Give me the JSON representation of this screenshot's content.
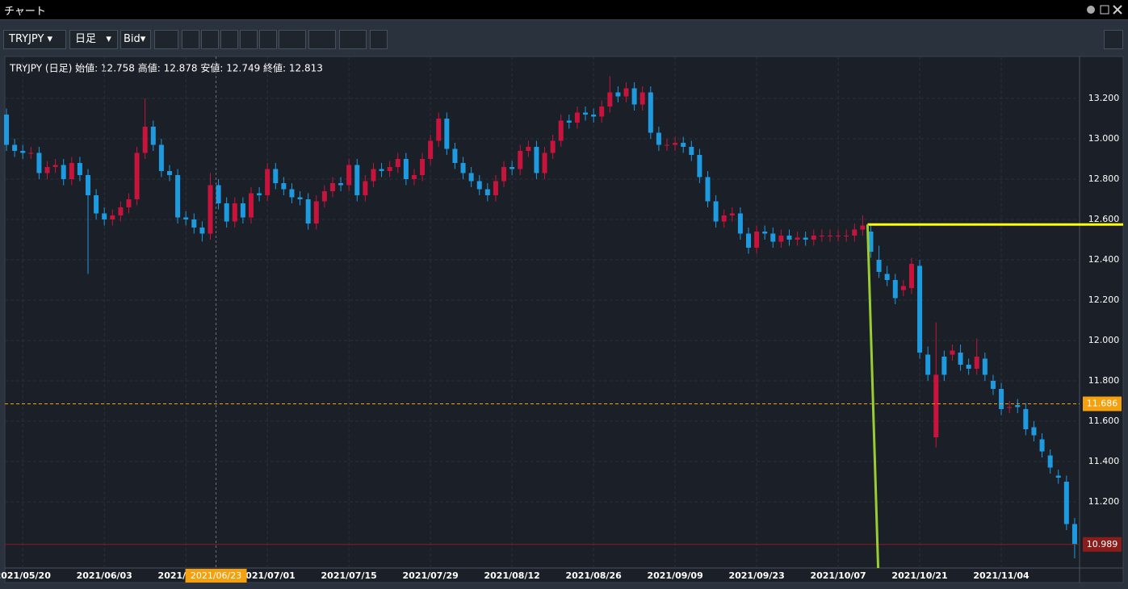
{
  "ui": {
    "window_title": "チャート",
    "symbol": "TRYJPY",
    "timeframe": "日足",
    "side": "Bid"
  },
  "chart_data": {
    "type": "candlestick",
    "info": "TRYJPY (日足) 始値: 12.758 高値: 12.878 安値: 12.749 終値: 12.813",
    "up_color": "#c8143c",
    "down_color": "#1e9be0",
    "grid": true,
    "xlim": [
      -0.2,
      131.6
    ],
    "xticks": [
      {
        "value": 2,
        "label": "2021/05/20"
      },
      {
        "value": 12,
        "label": "2021/06/03"
      },
      {
        "value": 22,
        "label": "2021/06/17"
      },
      {
        "value": 32,
        "label": "2021/07/01"
      },
      {
        "value": 42,
        "label": "2021/07/15"
      },
      {
        "value": 52,
        "label": "2021/07/29"
      },
      {
        "value": 62,
        "label": "2021/08/12"
      },
      {
        "value": 72,
        "label": "2021/08/26"
      },
      {
        "value": 82,
        "label": "2021/09/09"
      },
      {
        "value": 92,
        "label": "2021/09/23"
      },
      {
        "value": 102,
        "label": "2021/10/07"
      },
      {
        "value": 112,
        "label": "2021/10/21"
      },
      {
        "value": 122,
        "label": "2021/11/04"
      }
    ],
    "ylim": [
      10.872,
      13.4
    ],
    "yticks": [
      {
        "value": 11.2,
        "label": "11.200"
      },
      {
        "value": 11.4,
        "label": "11.400"
      },
      {
        "value": 11.6,
        "label": "11.600"
      },
      {
        "value": 11.8,
        "label": "11.800"
      },
      {
        "value": 12,
        "label": "12.000"
      },
      {
        "value": 12.2,
        "label": "12.200"
      },
      {
        "value": 12.4,
        "label": "12.400"
      },
      {
        "value": 12.6,
        "label": "12.600"
      },
      {
        "value": 12.8,
        "label": "12.800"
      },
      {
        "value": 13,
        "label": "13.000"
      },
      {
        "value": 13.2,
        "label": "13.200"
      }
    ],
    "open": [
      13.12,
      12.97,
      12.94,
      12.93,
      12.93,
      12.83,
      12.86,
      12.87,
      12.8,
      12.88,
      12.82,
      12.72,
      12.63,
      12.6,
      12.62,
      12.66,
      12.7,
      12.93,
      13.06,
      12.97,
      12.84,
      12.82,
      12.61,
      12.6,
      12.56,
      12.53,
      12.77,
      12.68,
      12.59,
      12.68,
      12.61,
      12.73,
      12.72,
      12.85,
      12.78,
      12.75,
      12.71,
      12.7,
      12.58,
      12.69,
      12.74,
      12.78,
      12.77,
      12.87,
      12.72,
      12.79,
      12.85,
      12.84,
      12.86,
      12.9,
      12.8,
      12.82,
      12.9,
      12.99,
      13.1,
      12.95,
      12.88,
      12.83,
      12.79,
      12.75,
      12.72,
      12.79,
      12.86,
      12.85,
      12.94,
      12.96,
      12.83,
      12.93,
      12.99,
      13.09,
      13.08,
      13.13,
      13.12,
      13.11,
      13.16,
      13.23,
      13.21,
      13.25,
      13.17,
      13.23,
      13.03,
      12.97,
      12.97,
      12.98,
      12.96,
      12.92,
      12.81,
      12.69,
      12.59,
      12.62,
      12.63,
      12.53,
      12.46,
      12.54,
      12.53,
      12.49,
      12.52,
      12.5,
      12.51,
      12.5,
      12.52,
      12.52,
      12.52,
      12.52,
      12.52,
      12.55,
      12.54,
      12.4,
      12.33,
      12.3,
      12.25,
      12.26,
      12.37,
      11.93,
      11.52,
      11.92,
      11.93,
      11.94,
      11.88,
      11.86,
      11.91,
      11.8,
      11.76,
      11.67,
      11.68,
      11.66,
      11.57,
      11.51,
      11.43,
      11.33,
      11.3,
      11.09
    ],
    "high": [
      13.15,
      13.0,
      12.97,
      12.96,
      12.96,
      12.89,
      12.9,
      12.9,
      12.91,
      12.91,
      12.85,
      12.75,
      12.66,
      12.65,
      12.69,
      12.73,
      12.96,
      13.2,
      13.09,
      13.0,
      12.87,
      12.85,
      12.64,
      12.63,
      12.59,
      12.83,
      12.8,
      12.71,
      12.71,
      12.71,
      12.76,
      12.76,
      12.88,
      12.88,
      12.81,
      12.78,
      12.74,
      12.73,
      12.72,
      12.77,
      12.81,
      12.81,
      12.9,
      12.9,
      12.82,
      12.88,
      12.88,
      12.89,
      12.93,
      12.93,
      12.85,
      12.93,
      13.02,
      13.13,
      13.13,
      12.98,
      12.91,
      12.86,
      12.82,
      12.78,
      12.82,
      12.89,
      12.89,
      12.97,
      12.99,
      12.99,
      12.96,
      13.02,
      13.12,
      13.12,
      13.16,
      13.16,
      13.15,
      13.19,
      13.31,
      13.26,
      13.28,
      13.28,
      13.26,
      13.26,
      13.06,
      13.0,
      13.01,
      13.01,
      12.99,
      12.95,
      12.84,
      12.72,
      12.65,
      12.66,
      12.66,
      12.56,
      12.57,
      12.57,
      12.56,
      12.55,
      12.55,
      12.54,
      12.54,
      12.55,
      12.55,
      12.55,
      12.55,
      12.55,
      12.58,
      12.62,
      12.57,
      12.47,
      12.37,
      12.33,
      12.3,
      12.41,
      12.4,
      11.97,
      12.09,
      11.95,
      11.98,
      11.98,
      11.91,
      12.01,
      11.94,
      11.83,
      11.79,
      11.7,
      11.71,
      11.69,
      11.6,
      11.54,
      11.46,
      11.36,
      11.33,
      11.12
    ],
    "low": [
      12.94,
      12.91,
      12.9,
      12.9,
      12.8,
      12.8,
      12.83,
      12.77,
      12.77,
      12.79,
      12.33,
      12.6,
      12.57,
      12.57,
      12.59,
      12.63,
      12.67,
      12.9,
      12.94,
      12.81,
      12.79,
      12.58,
      12.57,
      12.53,
      12.49,
      12.5,
      12.65,
      12.56,
      12.56,
      12.58,
      12.58,
      12.69,
      12.69,
      12.75,
      12.72,
      12.68,
      12.67,
      12.55,
      12.55,
      12.66,
      12.71,
      12.74,
      12.74,
      12.69,
      12.69,
      12.76,
      12.81,
      12.81,
      12.83,
      12.77,
      12.77,
      12.79,
      12.87,
      12.96,
      12.92,
      12.85,
      12.8,
      12.76,
      12.72,
      12.69,
      12.69,
      12.76,
      12.82,
      12.82,
      12.91,
      12.8,
      12.8,
      12.9,
      12.96,
      13.05,
      13.05,
      13.09,
      13.08,
      13.08,
      13.13,
      13.18,
      13.18,
      13.14,
      13.14,
      13.0,
      12.94,
      12.94,
      12.94,
      12.93,
      12.89,
      12.78,
      12.66,
      12.56,
      12.56,
      12.59,
      12.5,
      12.43,
      12.43,
      12.5,
      12.46,
      12.46,
      12.47,
      12.47,
      12.47,
      12.47,
      12.49,
      12.49,
      12.49,
      12.49,
      12.49,
      12.52,
      12.41,
      12.31,
      12.27,
      12.18,
      12.22,
      12.23,
      11.91,
      11.8,
      11.47,
      11.8,
      11.9,
      11.85,
      11.83,
      11.83,
      11.8,
      11.73,
      11.63,
      11.64,
      11.64,
      11.53,
      11.5,
      11.42,
      11.34,
      11.29,
      11.06,
      10.92
    ],
    "close": [
      12.97,
      12.94,
      12.93,
      12.93,
      12.83,
      12.86,
      12.87,
      12.8,
      12.88,
      12.82,
      12.72,
      12.63,
      12.6,
      12.62,
      12.66,
      12.7,
      12.93,
      13.06,
      12.97,
      12.84,
      12.82,
      12.61,
      12.6,
      12.56,
      12.53,
      12.77,
      12.68,
      12.59,
      12.68,
      12.61,
      12.73,
      12.72,
      12.85,
      12.78,
      12.75,
      12.71,
      12.7,
      12.58,
      12.69,
      12.74,
      12.78,
      12.77,
      12.87,
      12.72,
      12.79,
      12.85,
      12.84,
      12.86,
      12.9,
      12.8,
      12.82,
      12.9,
      12.99,
      13.1,
      12.95,
      12.88,
      12.83,
      12.79,
      12.75,
      12.72,
      12.79,
      12.86,
      12.85,
      12.94,
      12.96,
      12.83,
      12.93,
      12.99,
      13.09,
      13.08,
      13.13,
      13.12,
      13.11,
      13.16,
      13.23,
      13.21,
      13.25,
      13.17,
      13.23,
      13.03,
      12.97,
      12.97,
      12.98,
      12.96,
      12.92,
      12.81,
      12.69,
      12.59,
      12.62,
      12.63,
      12.53,
      12.46,
      12.54,
      12.53,
      12.49,
      12.52,
      12.5,
      12.51,
      12.5,
      12.52,
      12.52,
      12.52,
      12.52,
      12.52,
      12.55,
      12.57,
      12.44,
      12.34,
      12.3,
      12.21,
      12.27,
      12.38,
      11.94,
      11.83,
      11.83,
      11.83,
      11.95,
      11.88,
      11.86,
      11.92,
      11.83,
      11.76,
      11.66,
      11.67,
      11.67,
      11.56,
      11.53,
      11.45,
      11.37,
      11.32,
      11.09,
      10.99
    ],
    "price_lines": [
      {
        "value": 11.686,
        "color": "#f5a00f"
      },
      {
        "value": 10.989,
        "color": "#8b1c1c"
      }
    ],
    "crosshair": {
      "x": 25.7,
      "label": "2021/06/23"
    },
    "drawings": [
      {
        "type": "hline",
        "x": 105.6,
        "y": 12.575,
        "color": "#ffff00"
      },
      {
        "type": "line",
        "x": [
          105.6,
          106.9
        ],
        "y": [
          12.575,
          10.872
        ],
        "color": "#9acd32"
      }
    ]
  }
}
